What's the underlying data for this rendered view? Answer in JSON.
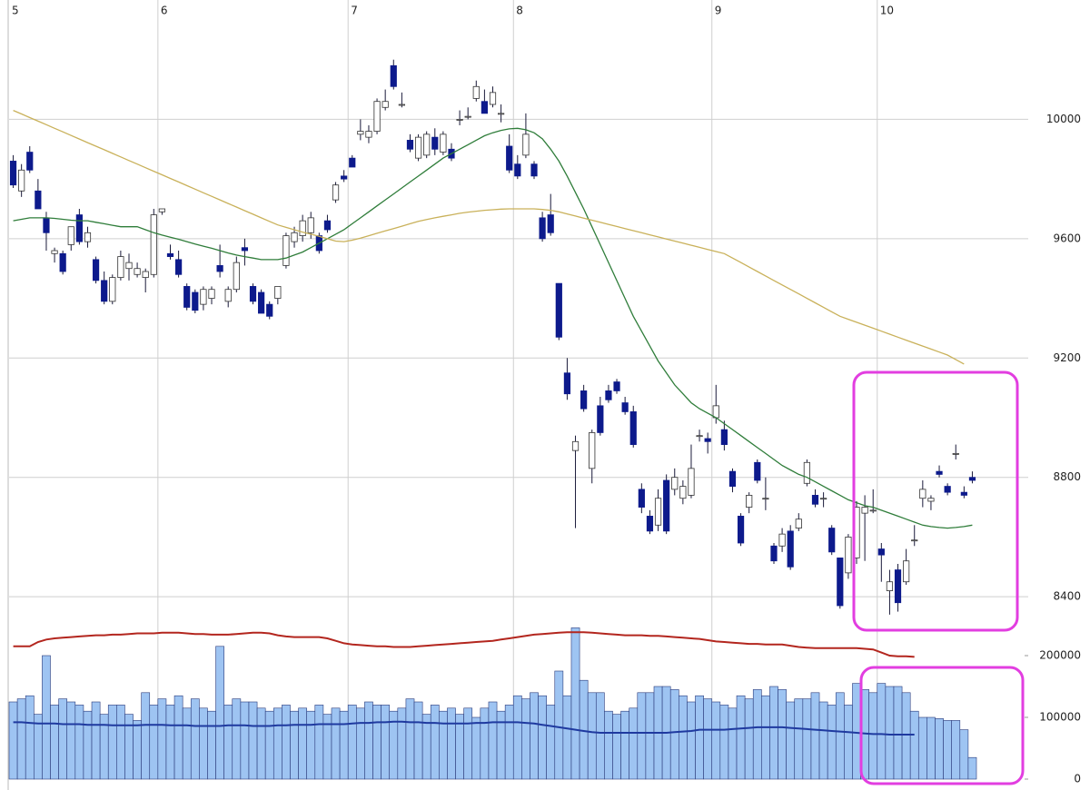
{
  "chart_data": [
    {
      "type": "candlestick",
      "categories": [
        "5",
        null,
        null,
        null,
        null,
        null,
        null,
        null,
        null,
        null,
        null,
        null,
        null,
        null,
        null,
        null,
        null,
        null,
        "6",
        null,
        null,
        null,
        null,
        null,
        null,
        null,
        null,
        null,
        null,
        null,
        null,
        null,
        null,
        null,
        null,
        null,
        null,
        null,
        null,
        null,
        null,
        "7",
        null,
        null,
        null,
        null,
        null,
        null,
        null,
        null,
        null,
        null,
        null,
        null,
        null,
        null,
        null,
        null,
        null,
        null,
        null,
        "8",
        null,
        null,
        null,
        null,
        null,
        null,
        null,
        null,
        null,
        null,
        null,
        null,
        null,
        null,
        null,
        null,
        null,
        null,
        null,
        null,
        null,
        null,
        null,
        "9",
        null,
        null,
        null,
        null,
        null,
        null,
        null,
        null,
        null,
        null,
        null,
        null,
        null,
        null,
        null,
        null,
        null,
        null,
        null,
        "10",
        null,
        null,
        null,
        null,
        null,
        null,
        null,
        null,
        null,
        null,
        null
      ],
      "open": [
        9860,
        9760,
        9890,
        9760,
        9670,
        9550,
        9550,
        9580,
        9680,
        9590,
        9530,
        9460,
        9390,
        9470,
        9500,
        9480,
        9470,
        9480,
        9690,
        9550,
        9530,
        9440,
        9420,
        9380,
        9400,
        9510,
        9390,
        9430,
        9570,
        9440,
        9420,
        9380,
        9400,
        9510,
        9590,
        9610,
        9620,
        9610,
        9660,
        9730,
        9810,
        9870,
        9950,
        9940,
        9960,
        10040,
        10180,
        10050,
        9930,
        9870,
        9880,
        9940,
        9890,
        9900,
        10000,
        10010,
        10070,
        10060,
        10050,
        10020,
        9910,
        9850,
        9880,
        9850,
        9670,
        9680,
        9450,
        9150,
        8890,
        9090,
        8830,
        9040,
        9090,
        9120,
        9050,
        9020,
        8760,
        8670,
        8640,
        8790,
        8760,
        8730,
        8740,
        8940,
        8930,
        9000,
        8960,
        8820,
        8670,
        8700,
        8850,
        8730,
        8570,
        8570,
        8620,
        8630,
        8780,
        8740,
        8730,
        8630,
        8530,
        8480,
        8530,
        8680,
        8690,
        8560,
        8420,
        8490,
        8450,
        8590,
        8730,
        8720,
        8820,
        8770,
        8880,
        8750,
        8800
      ],
      "high": [
        9880,
        9850,
        9910,
        9800,
        9690,
        9570,
        9560,
        9630,
        9700,
        9640,
        9540,
        9490,
        9480,
        9560,
        9550,
        9520,
        9500,
        9700,
        9700,
        9580,
        9560,
        9450,
        9430,
        9440,
        9440,
        9580,
        9440,
        9540,
        9600,
        9450,
        9430,
        9390,
        9440,
        9620,
        9640,
        9680,
        9690,
        9620,
        9680,
        9790,
        9830,
        9880,
        10000,
        9980,
        10070,
        10100,
        10200,
        10090,
        9950,
        9950,
        9960,
        9970,
        9960,
        9920,
        10030,
        10040,
        10130,
        10100,
        10110,
        10050,
        9950,
        9880,
        10020,
        9860,
        9690,
        9750,
        9450,
        9200,
        8940,
        9110,
        8960,
        9070,
        9110,
        9130,
        9070,
        9040,
        8780,
        8690,
        8760,
        8810,
        8830,
        8790,
        8910,
        8960,
        8950,
        9110,
        8990,
        8830,
        8680,
        8750,
        8860,
        8800,
        8580,
        8630,
        8640,
        8680,
        8860,
        8760,
        8750,
        8640,
        8530,
        8610,
        8720,
        8740,
        8760,
        8580,
        8490,
        8510,
        8560,
        8640,
        8790,
        8740,
        8840,
        8780,
        8910,
        8770,
        8820
      ],
      "low": [
        9770,
        9740,
        9820,
        9700,
        9560,
        9520,
        9480,
        9560,
        9580,
        9570,
        9450,
        9380,
        9380,
        9460,
        9460,
        9470,
        9420,
        9470,
        9680,
        9530,
        9470,
        9360,
        9350,
        9360,
        9380,
        9470,
        9370,
        9420,
        9510,
        9380,
        9350,
        9330,
        9380,
        9500,
        9570,
        9590,
        9600,
        9550,
        9620,
        9720,
        9790,
        9840,
        9930,
        9920,
        9950,
        10030,
        10100,
        10040,
        9890,
        9860,
        9870,
        9880,
        9880,
        9860,
        9980,
        10000,
        10060,
        10020,
        10040,
        9990,
        9820,
        9800,
        9870,
        9800,
        9590,
        9610,
        9260,
        9060,
        8630,
        9020,
        8780,
        8940,
        9050,
        9080,
        9010,
        8900,
        8680,
        8610,
        8620,
        8610,
        8740,
        8710,
        8730,
        8920,
        8880,
        8980,
        8890,
        8750,
        8570,
        8680,
        8780,
        8690,
        8510,
        8550,
        8490,
        8620,
        8770,
        8700,
        8700,
        8540,
        8360,
        8460,
        8510,
        8520,
        8680,
        8450,
        8340,
        8350,
        8440,
        8570,
        8700,
        8690,
        8800,
        8740,
        8860,
        8730,
        8780
      ],
      "close": [
        9780,
        9830,
        9830,
        9700,
        9620,
        9560,
        9490,
        9640,
        9590,
        9620,
        9460,
        9390,
        9470,
        9540,
        9520,
        9500,
        9490,
        9680,
        9700,
        9540,
        9480,
        9370,
        9360,
        9430,
        9430,
        9490,
        9430,
        9520,
        9560,
        9390,
        9350,
        9340,
        9440,
        9610,
        9620,
        9660,
        9670,
        9560,
        9630,
        9780,
        9800,
        9840,
        9960,
        9960,
        10060,
        10060,
        10110,
        10050,
        9900,
        9940,
        9950,
        9900,
        9950,
        9870,
        10000,
        10010,
        10110,
        10020,
        10090,
        10020,
        9830,
        9810,
        9950,
        9810,
        9600,
        9620,
        9270,
        9080,
        8920,
        9030,
        8950,
        8950,
        9060,
        9090,
        9020,
        8910,
        8700,
        8620,
        8730,
        8620,
        8800,
        8770,
        8830,
        8940,
        8920,
        9040,
        8910,
        8770,
        8580,
        8740,
        8790,
        8730,
        8520,
        8610,
        8500,
        8660,
        8850,
        8710,
        8730,
        8550,
        8370,
        8600,
        8700,
        8700,
        8690,
        8540,
        8450,
        8380,
        8520,
        8590,
        8760,
        8730,
        8810,
        8750,
        8880,
        8740,
        8790
      ],
      "up_color": "#ffffff",
      "down_color": "#0d1a8c",
      "series": [
        {
          "color": "#2f7d3a",
          "values": [
            9660,
            9665,
            9670,
            9670,
            9670,
            9668,
            9665,
            9662,
            9660,
            9660,
            9655,
            9650,
            9645,
            9640,
            9640,
            9640,
            9630,
            9620,
            9612,
            9605,
            9598,
            9590,
            9582,
            9575,
            9568,
            9560,
            9552,
            9545,
            9540,
            9535,
            9530,
            9530,
            9530,
            9535,
            9545,
            9555,
            9570,
            9585,
            9600,
            9615,
            9630,
            9650,
            9670,
            9690,
            9710,
            9730,
            9750,
            9770,
            9790,
            9810,
            9830,
            9850,
            9870,
            9885,
            9900,
            9915,
            9930,
            9945,
            9955,
            9963,
            9968,
            9970,
            9965,
            9955,
            9935,
            9900,
            9860,
            9810,
            9755,
            9700,
            9640,
            9580,
            9520,
            9460,
            9400,
            9340,
            9290,
            9240,
            9190,
            9150,
            9110,
            9080,
            9050,
            9030,
            9015,
            9000,
            8980,
            8960,
            8940,
            8920,
            8900,
            8880,
            8860,
            8840,
            8825,
            8810,
            8800,
            8785,
            8770,
            8755,
            8740,
            8725,
            8715,
            8705,
            8700,
            8690,
            8680,
            8670,
            8660,
            8650,
            8640,
            8635,
            8632,
            8630,
            8632,
            8635,
            8640
          ]
        },
        {
          "color": "#c9b15a",
          "values": [
            10030,
            10018,
            10006,
            9994,
            9982,
            9970,
            9958,
            9946,
            9934,
            9922,
            9910,
            9898,
            9886,
            9874,
            9862,
            9850,
            9838,
            9826,
            9814,
            9802,
            9790,
            9778,
            9766,
            9754,
            9742,
            9730,
            9718,
            9706,
            9694,
            9682,
            9670,
            9658,
            9646,
            9638,
            9630,
            9622,
            9615,
            9608,
            9600,
            9592,
            9590,
            9595,
            9602,
            9610,
            9618,
            9626,
            9634,
            9642,
            9650,
            9658,
            9664,
            9670,
            9675,
            9680,
            9685,
            9689,
            9692,
            9695,
            9697,
            9699,
            9700,
            9700,
            9700,
            9700,
            9698,
            9695,
            9690,
            9683,
            9676,
            9669,
            9662,
            9655,
            9648,
            9641,
            9634,
            9627,
            9620,
            9613,
            9606,
            9599,
            9592,
            9585,
            9578,
            9571,
            9564,
            9557,
            9550,
            9535,
            9520,
            9505,
            9490,
            9475,
            9460,
            9445,
            9430,
            9415,
            9400,
            9385,
            9370,
            9355,
            9340,
            9330,
            9320,
            9310,
            9300,
            9290,
            9280,
            9270,
            9260,
            9250,
            9240,
            9230,
            9220,
            9210,
            9195,
            9180,
            null
          ]
        }
      ],
      "ylim": [
        8300,
        10400
      ],
      "yticks": [
        8400,
        8800,
        9200,
        9600,
        10000
      ],
      "grid": true
    },
    {
      "type": "bar",
      "color": "#9ec4f2",
      "values": [
        125000,
        130000,
        135000,
        105000,
        200000,
        120000,
        130000,
        125000,
        120000,
        110000,
        125000,
        105000,
        120000,
        120000,
        105000,
        95000,
        140000,
        120000,
        130000,
        120000,
        135000,
        115000,
        130000,
        115000,
        110000,
        215000,
        120000,
        130000,
        125000,
        125000,
        115000,
        110000,
        115000,
        120000,
        110000,
        115000,
        110000,
        120000,
        105000,
        115000,
        110000,
        120000,
        115000,
        125000,
        120000,
        120000,
        110000,
        115000,
        130000,
        125000,
        105000,
        120000,
        110000,
        115000,
        105000,
        115000,
        100000,
        115000,
        125000,
        110000,
        120000,
        135000,
        130000,
        140000,
        135000,
        120000,
        175000,
        135000,
        245000,
        160000,
        140000,
        140000,
        110000,
        105000,
        110000,
        115000,
        140000,
        140000,
        150000,
        150000,
        145000,
        135000,
        125000,
        135000,
        130000,
        125000,
        120000,
        115000,
        135000,
        130000,
        145000,
        135000,
        150000,
        145000,
        125000,
        130000,
        130000,
        140000,
        125000,
        120000,
        140000,
        120000,
        155000,
        145000,
        140000,
        155000,
        150000,
        150000,
        140000,
        110000,
        100000,
        100000,
        98000,
        95000,
        95000,
        80000,
        35000
      ],
      "series": [
        {
          "color": "#1f3aa0",
          "values": [
            92000,
            92000,
            91000,
            90000,
            90000,
            90000,
            89000,
            89000,
            89000,
            88000,
            88000,
            88000,
            87000,
            87000,
            87000,
            87000,
            88000,
            88000,
            88000,
            87000,
            87000,
            87000,
            86000,
            86000,
            86000,
            86000,
            87000,
            87000,
            87000,
            86000,
            86000,
            86000,
            87000,
            87000,
            88000,
            88000,
            88000,
            89000,
            89000,
            89000,
            89000,
            90000,
            91000,
            91000,
            92000,
            92000,
            93000,
            93000,
            92000,
            92000,
            91000,
            91000,
            90000,
            90000,
            90000,
            90000,
            91000,
            91000,
            92000,
            92000,
            92000,
            92000,
            91000,
            90000,
            88000,
            86000,
            84000,
            82000,
            80000,
            78000,
            76000,
            75000,
            75000,
            75000,
            75000,
            75000,
            75000,
            75000,
            75000,
            75000,
            76000,
            77000,
            78000,
            80000,
            80000,
            80000,
            80000,
            81000,
            82000,
            83000,
            84000,
            84000,
            84000,
            84000,
            83000,
            82000,
            81000,
            80000,
            79000,
            78000,
            77000,
            76000,
            75000,
            74000,
            73000,
            73000,
            72000,
            72000,
            72000,
            72000,
            null,
            null,
            null,
            null,
            null,
            null,
            null
          ]
        },
        {
          "color": "#b3261e",
          "values": [
            215000,
            215000,
            215000,
            222000,
            226000,
            228000,
            229000,
            230000,
            231000,
            232000,
            233000,
            233000,
            234000,
            234000,
            235000,
            236000,
            236000,
            236000,
            237000,
            237000,
            237000,
            236000,
            235000,
            235000,
            234000,
            234000,
            234000,
            235000,
            236000,
            237000,
            237000,
            236000,
            233000,
            231000,
            230000,
            230000,
            230000,
            230000,
            228000,
            224000,
            220000,
            218000,
            217000,
            216000,
            215000,
            215000,
            214000,
            214000,
            214000,
            215000,
            216000,
            217000,
            218000,
            219000,
            220000,
            221000,
            222000,
            223000,
            224000,
            226000,
            228000,
            230000,
            232000,
            234000,
            235000,
            236000,
            237000,
            238000,
            238000,
            238000,
            237000,
            236000,
            235000,
            234000,
            233000,
            233000,
            233000,
            232000,
            232000,
            231000,
            230000,
            229000,
            228000,
            227000,
            225000,
            223000,
            222000,
            221000,
            220000,
            219000,
            219000,
            218000,
            218000,
            218000,
            216000,
            214000,
            213000,
            212000,
            212000,
            212000,
            212000,
            212000,
            212000,
            211000,
            210000,
            205000,
            200000,
            199000,
            199000,
            198000,
            null,
            null,
            null,
            null,
            null,
            null,
            null
          ]
        }
      ],
      "ylim": [
        0,
        250000
      ],
      "yticks": [
        0,
        100000,
        200000
      ],
      "grid": false
    }
  ]
}
